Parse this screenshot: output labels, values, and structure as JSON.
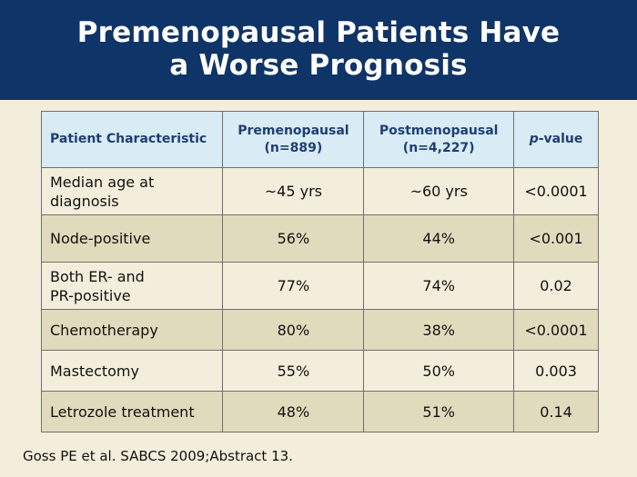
{
  "slide": {
    "title_line1": "Premenopausal Patients Have",
    "title_line2": "a Worse Prognosis",
    "footnote": "Goss PE et al. SABCS 2009;Abstract 13."
  },
  "table": {
    "headers": {
      "characteristic": "Patient Characteristic",
      "pre_line1": "Premenopausal",
      "pre_line2": "(n=889)",
      "post_line1": "Postmenopausal",
      "post_line2": "(n=4,227)",
      "pvalue_p": "p",
      "pvalue_rest": "-value"
    },
    "rows": [
      {
        "label_line1": "Median age at",
        "label_line2": "diagnosis",
        "pre": "~45 yrs",
        "post": "~60 yrs",
        "p": "<0.0001"
      },
      {
        "label": "Node-positive",
        "pre": "56%",
        "post": "44%",
        "p": "<0.001"
      },
      {
        "label_line1": "Both ER- and",
        "label_line2": "PR-positive",
        "pre": "77%",
        "post": "74%",
        "p": "0.02"
      },
      {
        "label": "Chemotherapy",
        "pre": "80%",
        "post": "38%",
        "p": "<0.0001"
      },
      {
        "label": "Mastectomy",
        "pre": "55%",
        "post": "50%",
        "p": "0.003"
      },
      {
        "label": "Letrozole treatment",
        "pre": "48%",
        "post": "51%",
        "p": "0.14"
      }
    ]
  },
  "colors": {
    "header_bg": "#0f3467",
    "page_bg": "#f3eedb",
    "row_dark": "#e1dbbd",
    "table_header_bg": "#d9ebf4",
    "table_header_text": "#1d3f73"
  }
}
